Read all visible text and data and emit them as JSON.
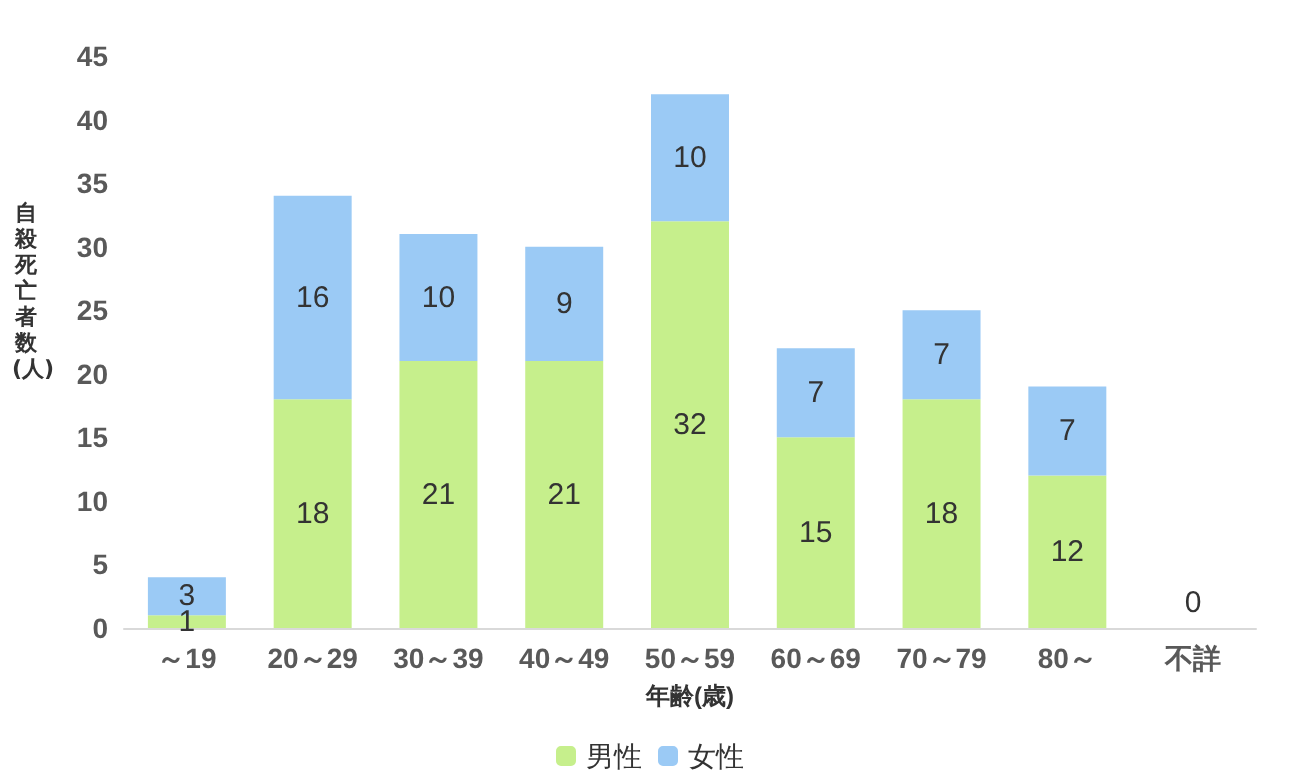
{
  "chart_data": {
    "type": "bar",
    "stacked": true,
    "xlabel": "年齢(歳)",
    "ylabel": "自殺死亡者数(人)",
    "categories": [
      "～19",
      "20～29",
      "30～39",
      "40～49",
      "50～59",
      "60～69",
      "70～79",
      "80～",
      "不詳"
    ],
    "series": [
      {
        "name": "男性",
        "color": "#c6ef8c",
        "values": [
          1,
          18,
          21,
          21,
          32,
          15,
          18,
          12,
          0
        ],
        "value_labels": [
          "1",
          "18",
          "21",
          "21",
          "32",
          "15",
          "18",
          "12",
          "0"
        ]
      },
      {
        "name": "女性",
        "color": "#9bcaf5",
        "values": [
          3,
          16,
          10,
          9,
          10,
          7,
          7,
          7,
          0
        ],
        "value_labels": [
          "3",
          "16",
          "10",
          "9",
          "10",
          "7",
          "7",
          "7",
          null
        ]
      }
    ],
    "ylim": [
      0,
      45
    ],
    "yticks": [
      0,
      5,
      10,
      15,
      20,
      25,
      30,
      35,
      40,
      45
    ],
    "grid": false,
    "legend": "bottom"
  }
}
